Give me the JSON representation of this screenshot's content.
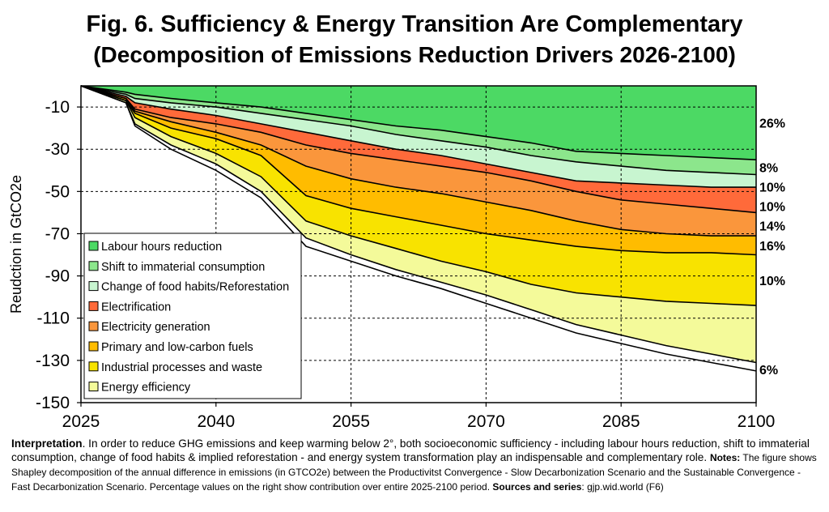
{
  "header": {
    "title": "Fig. 6. Sufficiency & Energy Transition Are Complementary",
    "subtitle": "(Decomposition of Emissions Reduction Drivers 2026-2100)"
  },
  "chart_data": {
    "type": "area",
    "ylabel": "Reudction in GtCO2e",
    "xlabel": "",
    "xlim": [
      2025,
      2100
    ],
    "ylim": [
      -150,
      0
    ],
    "x_ticks": [
      2025,
      2040,
      2055,
      2070,
      2085,
      2100
    ],
    "y_ticks": [
      -10,
      -30,
      -50,
      -70,
      -90,
      -110,
      -130,
      -150
    ],
    "grid": "dashed",
    "legend_position": "bottom-left",
    "x": [
      2025,
      2030,
      2031,
      2035,
      2040,
      2045,
      2050,
      2055,
      2060,
      2065,
      2070,
      2075,
      2080,
      2085,
      2090,
      2095,
      2100
    ],
    "cumulative_boundaries": [
      {
        "name": "Labour hours reduction",
        "values": [
          0,
          -3,
          -4,
          -6,
          -8,
          -10,
          -13,
          -16,
          -19,
          -21,
          -24,
          -27,
          -31,
          -32,
          -33,
          -34,
          -35
        ]
      },
      {
        "name": "Shift to immaterial consumption",
        "values": [
          0,
          -4,
          -6,
          -8,
          -10,
          -13,
          -16,
          -19,
          -23,
          -26,
          -29,
          -33,
          -36,
          -38,
          -40,
          -41,
          -42
        ]
      },
      {
        "name": "Change of food habits/Reforestation",
        "values": [
          0,
          -5,
          -8,
          -11,
          -14,
          -18,
          -22,
          -26,
          -30,
          -33,
          -37,
          -41,
          -45,
          -46,
          -47,
          -48,
          -48
        ]
      },
      {
        "name": "Electrification",
        "values": [
          0,
          -6,
          -11,
          -15,
          -18,
          -22,
          -28,
          -32,
          -35,
          -38,
          -41,
          -45,
          -50,
          -54,
          -56,
          -58,
          -60
        ]
      },
      {
        "name": "Electricity generation",
        "values": [
          0,
          -6,
          -12,
          -17,
          -22,
          -28,
          -38,
          -44,
          -48,
          -51,
          -55,
          -59,
          -64,
          -68,
          -70,
          -71,
          -71
        ]
      },
      {
        "name": "Primary and low-carbon fuels",
        "values": [
          0,
          -7,
          -13,
          -20,
          -25,
          -33,
          -52,
          -58,
          -62,
          -66,
          -70,
          -73,
          -76,
          -78,
          -79,
          -79,
          -80
        ]
      },
      {
        "name": "Industrial processes and waste",
        "values": [
          0,
          -7,
          -15,
          -24,
          -32,
          -43,
          -64,
          -71,
          -77,
          -83,
          -88,
          -94,
          -98,
          -100,
          -102,
          -103,
          -104
        ]
      },
      {
        "name": "Energy efficiency",
        "values": [
          0,
          -8,
          -18,
          -28,
          -37,
          -50,
          -72,
          -80,
          -87,
          -93,
          -99,
          -106,
          -113,
          -118,
          -123,
          -127,
          -131
        ]
      },
      {
        "name": "Total",
        "values": [
          0,
          -8,
          -19,
          -30,
          -40,
          -53,
          -76,
          -83,
          -90,
          -96,
          -103,
          -110,
          -117,
          -122,
          -127,
          -131,
          -135
        ]
      }
    ],
    "series": [
      {
        "name": "Labour hours reduction",
        "color": "#4cd964",
        "share": "26%"
      },
      {
        "name": "Shift to immaterial consumption",
        "color": "#8ce68c",
        "share": "8%"
      },
      {
        "name": "Change of food habits/Reforestation",
        "color": "#c8f5d0",
        "share": "10%"
      },
      {
        "name": "Electrification",
        "color": "#ff6a3a",
        "share": "10%"
      },
      {
        "name": "Electricity generation",
        "color": "#fa963c",
        "share": "14%"
      },
      {
        "name": "Primary and low-carbon fuels",
        "color": "#ffbc00",
        "share": "16%"
      },
      {
        "name": "Industrial processes and waste",
        "color": "#f8e300",
        "share": "10%"
      },
      {
        "name": "Energy efficiency",
        "color": "#f4fa9a",
        "share": "6%"
      }
    ]
  },
  "notes": {
    "interp_label": "Interpretation",
    "interp_text": ". In order to reduce GHG emissions and keep warming below 2°, both socioeconomic sufficiency - including labour hours reduction, shift to immaterial consumption, change of food habits & implied reforestation - and energy system transformation play an indispensable and complementary role. ",
    "notes_label": "Notes:",
    "notes_text": " The figure shows Shapley decomposition of the annual difference in emissions (in GTCO2e) between the Productivitst Convergence - Slow Decarbonization Scenario and the Sustainable Convergence - Fast Decarbonization Scenario. Percentage values on the right show contribution over entire 2025-2100 period. ",
    "sources_label": "Sources and series",
    "sources_text": ": gjp.wid.world (F6)"
  }
}
